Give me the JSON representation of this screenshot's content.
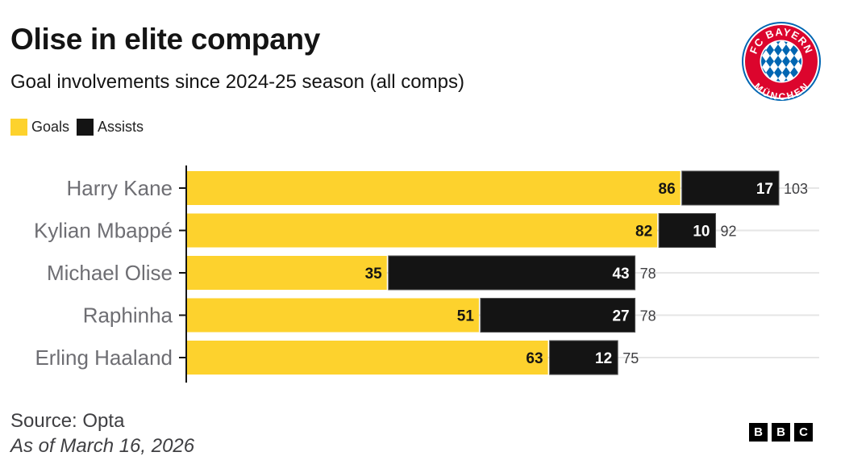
{
  "header": {
    "title": "Olise in elite company",
    "subtitle": "Goal involvements since 2024-25 season (all comps)"
  },
  "legend": [
    {
      "label": "Goals",
      "color": "#fdd22d"
    },
    {
      "label": "Assists",
      "color": "#141414"
    }
  ],
  "logo": {
    "icon": "fc-bayern-munchen-crest-icon",
    "top_text": "FC BAYERN",
    "bottom_text": "MÜNCHEN",
    "red": "#dc052d",
    "blue": "#0066b2"
  },
  "chart_data": {
    "type": "bar",
    "orientation": "horizontal",
    "stacked": true,
    "title": "Olise in elite company",
    "subtitle": "Goal involvements since 2024-25 season (all comps)",
    "categories": [
      "Harry Kane",
      "Kylian Mbappé",
      "Michael Olise",
      "Raphinha",
      "Erling Haaland"
    ],
    "series": [
      {
        "name": "Goals",
        "color": "#fdd22d",
        "label_color": "#141414",
        "values": [
          86,
          82,
          35,
          51,
          63
        ]
      },
      {
        "name": "Assists",
        "color": "#141414",
        "label_color": "#ffffff",
        "values": [
          17,
          10,
          43,
          27,
          12
        ]
      }
    ],
    "totals": [
      103,
      92,
      78,
      78,
      75
    ],
    "xlim": [
      0,
      103
    ],
    "xlabel": "",
    "ylabel": "",
    "grid": true,
    "legend_position": "top-left"
  },
  "footer": {
    "source": "Source: Opta",
    "date": "As of March 16, 2026",
    "brand": [
      "B",
      "B",
      "C"
    ]
  }
}
